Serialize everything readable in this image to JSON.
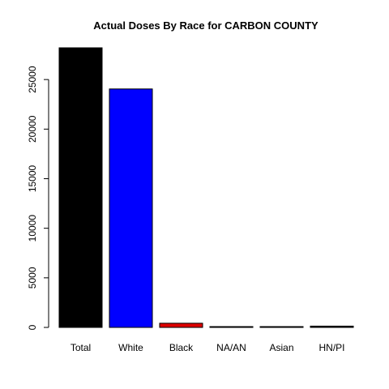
{
  "chart_data": {
    "type": "bar",
    "title": "Actual Doses By Race for CARBON COUNTY",
    "xlabel": "",
    "ylabel": "",
    "categories": [
      "Total",
      "White",
      "Black",
      "NA/AN",
      "Asian",
      "HN/PI"
    ],
    "values": [
      28200,
      24050,
      420,
      30,
      40,
      130
    ],
    "colors": [
      "#000000",
      "#0000ff",
      "#dd0000",
      "#000000",
      "#000000",
      "#000000"
    ],
    "ylim": [
      0,
      28200
    ],
    "yticks": [
      0,
      5000,
      10000,
      15000,
      20000,
      25000
    ],
    "ytick_labels": [
      "0",
      "5000",
      "10000",
      "15000",
      "20000",
      "25000"
    ],
    "grid": false,
    "legend": "none"
  }
}
